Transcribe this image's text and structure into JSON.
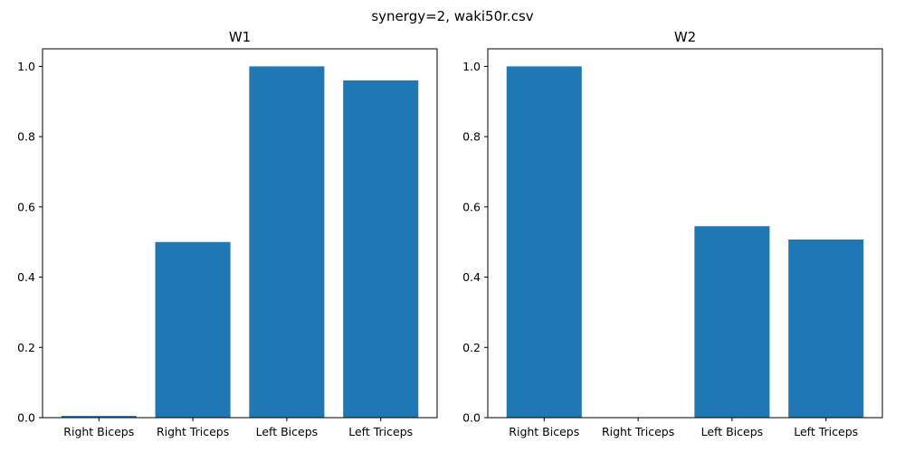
{
  "suptitle": "synergy=2, waki50r.csv",
  "colors": {
    "bar": "#1f77b4",
    "axis": "#000000",
    "background": "#ffffff"
  },
  "chart_data": [
    {
      "type": "bar",
      "title": "W1",
      "categories": [
        "Right Biceps",
        "Right Triceps",
        "Left Biceps",
        "Left Triceps"
      ],
      "values": [
        0.005,
        0.5,
        1.0,
        0.96
      ],
      "ylim": [
        0,
        1.05
      ],
      "yticks": [
        "0.0",
        "0.2",
        "0.4",
        "0.6",
        "0.8",
        "1.0"
      ],
      "grid": false,
      "legend": false
    },
    {
      "type": "bar",
      "title": "W2",
      "categories": [
        "Right Biceps",
        "Right Triceps",
        "Left Biceps",
        "Left Triceps"
      ],
      "values": [
        1.0,
        0.0,
        0.545,
        0.507
      ],
      "ylim": [
        0,
        1.05
      ],
      "yticks": [
        "0.0",
        "0.2",
        "0.4",
        "0.6",
        "0.8",
        "1.0"
      ],
      "grid": false,
      "legend": false
    }
  ]
}
